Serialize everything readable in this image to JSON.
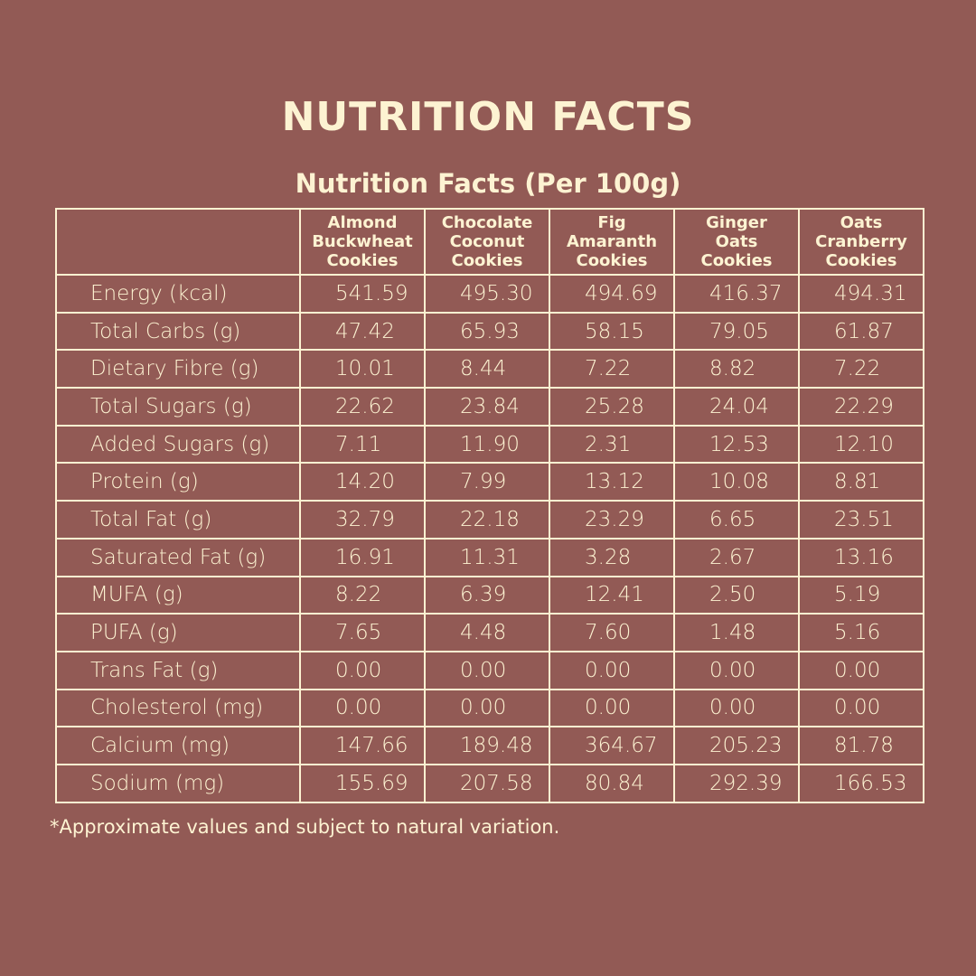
{
  "header": {
    "title": "NUTRITION FACTS"
  },
  "table": {
    "caption": "Nutrition Facts (Per 100g)",
    "columns": [
      [
        "Almond",
        "Buckwheat",
        "Cookies"
      ],
      [
        "Chocolate",
        "Coconut",
        "Cookies"
      ],
      [
        "Fig",
        "Amaranth",
        "Cookies"
      ],
      [
        "Ginger",
        "Oats",
        "Cookies"
      ],
      [
        "Oats",
        "Cranberry",
        "Cookies"
      ]
    ],
    "rows": [
      [
        "Energy (kcal)",
        "541.59",
        "495.30",
        "494.69",
        "416.37",
        "494.31"
      ],
      [
        "Total Carbs (g)",
        "47.42",
        "65.93",
        "58.15",
        "79.05",
        "61.87"
      ],
      [
        "Dietary Fibre (g)",
        "10.01",
        "8.44",
        "7.22",
        "8.82",
        "7.22"
      ],
      [
        "Total Sugars (g)",
        "22.62",
        "23.84",
        "25.28",
        "24.04",
        "22.29"
      ],
      [
        "Added Sugars (g)",
        "7.11",
        "11.90",
        "2.31",
        "12.53",
        "12.10"
      ],
      [
        "Protein (g)",
        "14.20",
        "7.99",
        "13.12",
        "10.08",
        "8.81"
      ],
      [
        "Total Fat (g)",
        "32.79",
        "22.18",
        "23.29",
        "6.65",
        "23.51"
      ],
      [
        "Saturated Fat (g)",
        "16.91",
        "11.31",
        "3.28",
        "2.67",
        "13.16"
      ],
      [
        "MUFA (g)",
        "8.22",
        "6.39",
        "12.41",
        "2.50",
        "5.19"
      ],
      [
        "PUFA (g)",
        "7.65",
        "4.48",
        "7.60",
        "1.48",
        "5.16"
      ],
      [
        "Trans Fat (g)",
        "0.00",
        "0.00",
        "0.00",
        "0.00",
        "0.00"
      ],
      [
        "Cholesterol (mg)",
        "0.00",
        "0.00",
        "0.00",
        "0.00",
        "0.00"
      ],
      [
        "Calcium (mg)",
        "147.66",
        "189.48",
        "364.67",
        "205.23",
        "81.78"
      ],
      [
        "Sodium (mg)",
        "155.69",
        "207.58",
        "80.84",
        "292.39",
        "166.53"
      ]
    ]
  },
  "footnote": "*Approximate values and subject to natural variation."
}
